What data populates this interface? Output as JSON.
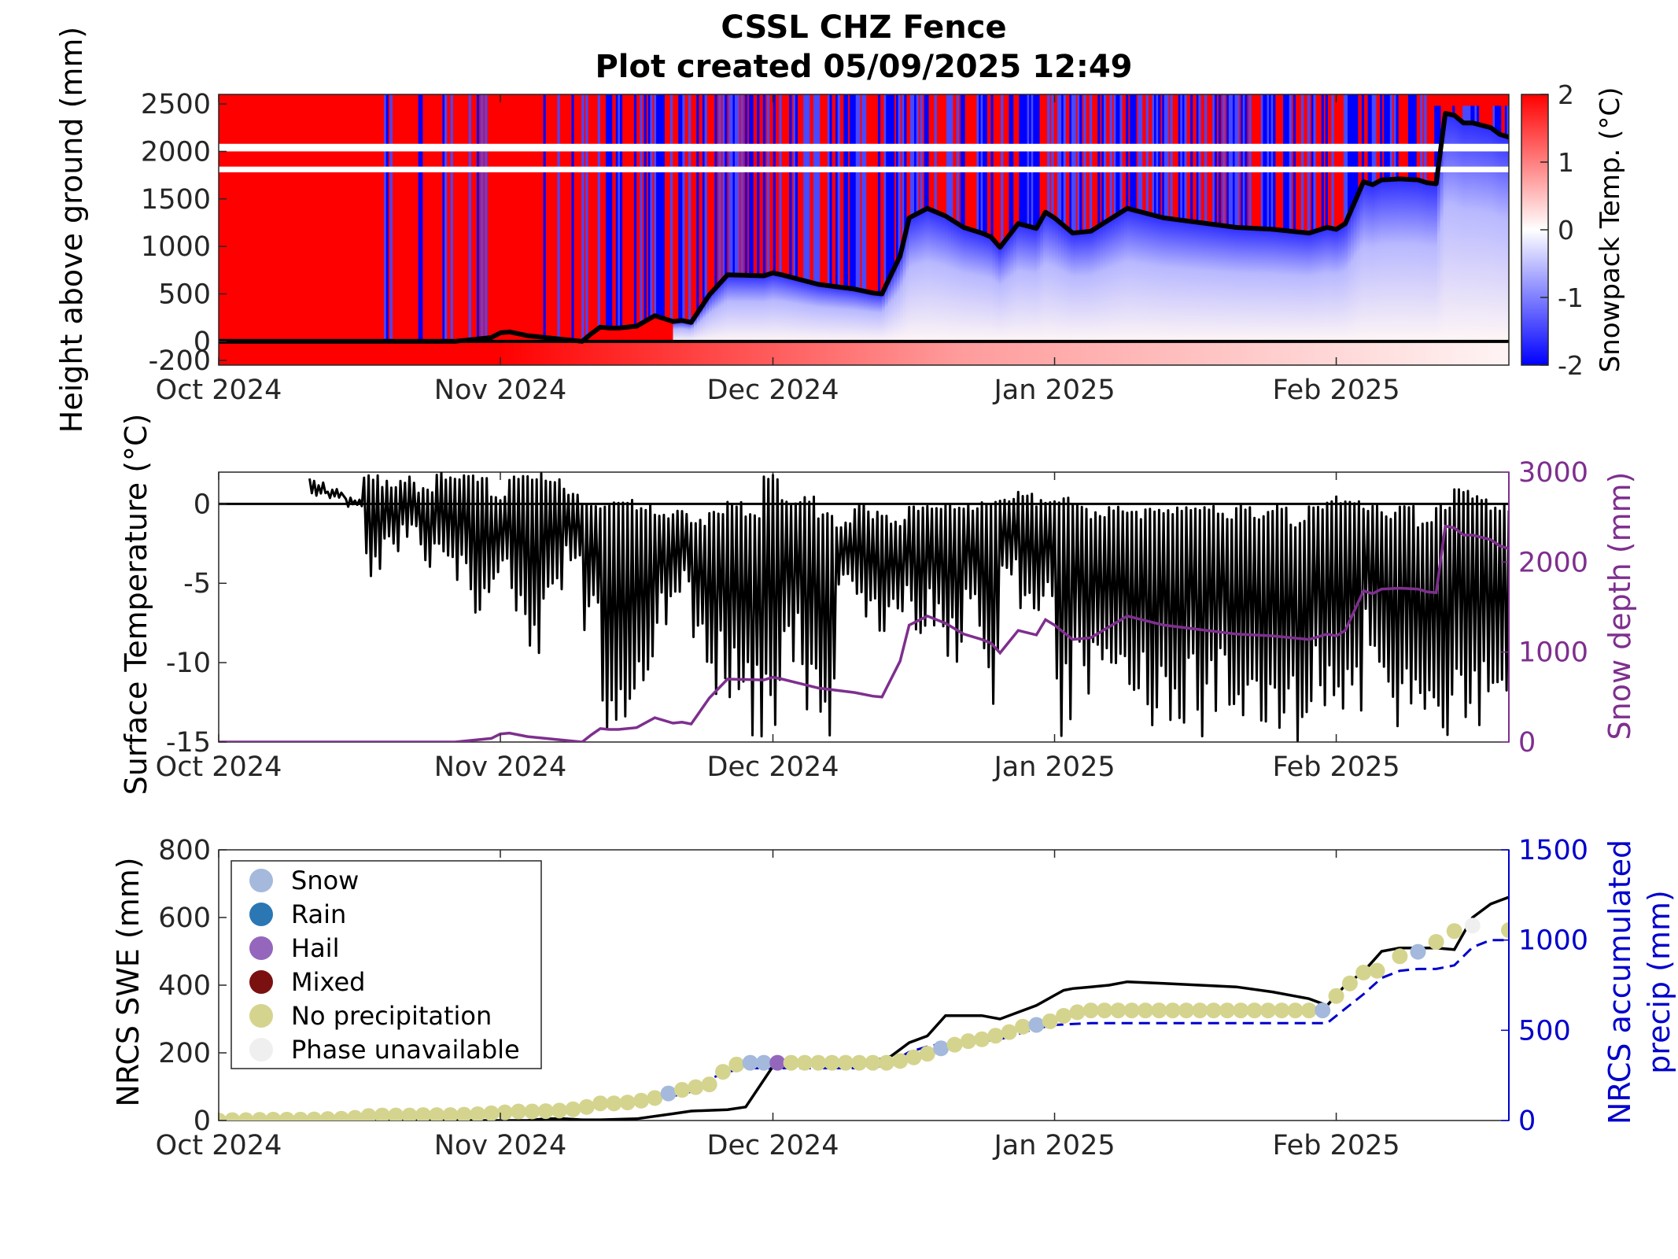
{
  "title": "CSSL CHZ Fence",
  "subtitle": "Plot created 05/09/2025 12:49",
  "colors": {
    "warm": "#ff0000",
    "cold": "#0000ff",
    "snow_depth": "#7e2f8e",
    "precip": "#0000cc",
    "swe": "#000000"
  },
  "chart_data": [
    {
      "type": "heatmap",
      "id": "snowpack",
      "ylabel": "Height above ground (mm)",
      "colorbar_label": "Snowpack Temp. (°C)",
      "colorbar_ticks": [
        2,
        1,
        0,
        -1,
        -2
      ],
      "colorbar_tick_labels": [
        "2",
        "1",
        "0",
        "-1",
        "-2"
      ],
      "zlim": [
        -2,
        2
      ],
      "ylim": [
        -250,
        2600
      ],
      "yticks": [
        2500,
        2000,
        1500,
        1000,
        500,
        0,
        -200
      ],
      "ytick_labels": [
        "2500",
        "2000",
        "1500",
        "1000",
        "500",
        "0",
        "-200"
      ],
      "xlim_days": [
        0,
        142
      ],
      "xticks": [
        0,
        31,
        61,
        92,
        123
      ],
      "xtick_labels": [
        "Oct 2024",
        "Nov 2024",
        "Dec 2024",
        "Jan 2025",
        "Feb 2025"
      ],
      "sensor_gaps_mm": [
        [
          2000,
          2080
        ],
        [
          1780,
          1840
        ]
      ],
      "snow_depth": {
        "x": [
          0,
          26,
          30,
          31,
          32,
          34,
          40,
          41,
          42,
          43,
          44,
          46,
          48,
          50,
          51,
          52,
          54,
          56,
          60,
          61,
          62,
          64,
          66,
          70,
          72,
          73,
          74,
          75,
          76,
          78,
          80,
          82,
          84,
          85,
          86,
          88,
          90,
          91,
          92,
          94,
          96,
          100,
          104,
          108,
          112,
          116,
          120,
          122,
          123,
          124,
          126,
          127,
          128,
          130,
          132,
          133,
          134,
          135,
          136,
          137,
          138,
          140,
          141,
          142
        ],
        "y": [
          0,
          0,
          40,
          90,
          100,
          60,
          0,
          80,
          150,
          140,
          140,
          160,
          270,
          210,
          220,
          200,
          490,
          700,
          690,
          720,
          700,
          650,
          600,
          550,
          510,
          500,
          700,
          900,
          1300,
          1400,
          1320,
          1200,
          1140,
          1100,
          990,
          1240,
          1190,
          1360,
          1300,
          1140,
          1160,
          1400,
          1300,
          1250,
          1200,
          1180,
          1140,
          1200,
          1180,
          1240,
          1680,
          1650,
          1700,
          1710,
          1700,
          1670,
          1660,
          2400,
          2380,
          2300,
          2300,
          2250,
          2180,
          2150
        ]
      },
      "snowcover_start_day": 50
    },
    {
      "type": "line",
      "id": "surface",
      "ylabel": "Surface Temperature (°C)",
      "y2label": "Snow depth (mm)",
      "ylim": [
        -15,
        2
      ],
      "yticks": [
        0,
        -5,
        -10,
        -15
      ],
      "ytick_labels": [
        "0",
        "-5",
        "-10",
        "-15"
      ],
      "y2lim": [
        0,
        3000
      ],
      "y2ticks": [
        3000,
        2000,
        1000,
        0
      ],
      "y2tick_labels": [
        "3000",
        "2000",
        "1000",
        "0"
      ],
      "xlim_days": [
        0,
        142
      ],
      "xticks": [
        0,
        31,
        61,
        92,
        123
      ],
      "xtick_labels": [
        "Oct 2024",
        "Nov 2024",
        "Dec 2024",
        "Jan 2025",
        "Feb 2025"
      ],
      "series": [
        {
          "series_key": "surface_temperature",
          "color": "#000000",
          "x_days": [
            10,
            12,
            14,
            16,
            18,
            20,
            22,
            24,
            26,
            28,
            30,
            32,
            34,
            36,
            38,
            40,
            42,
            44,
            46,
            48,
            50,
            52,
            54,
            56,
            58,
            60,
            62,
            64,
            66,
            68,
            70,
            72,
            74,
            76,
            78,
            80,
            82,
            84,
            86,
            88,
            90,
            92,
            94,
            96,
            98,
            100,
            102,
            104,
            106,
            108,
            110,
            112,
            114,
            116,
            118,
            120,
            122,
            124,
            126,
            128,
            130,
            132,
            134,
            136,
            138,
            140,
            142
          ],
          "daily_max": [
            1.6,
            1.0,
            0.5,
            1.8,
            1.5,
            1.8,
            1.2,
            2.0,
            2.0,
            1.8,
            0.5,
            2.0,
            2.0,
            1.8,
            1.0,
            0,
            0.2,
            0.3,
            0,
            -0.5,
            -0.3,
            -1.0,
            -0.2,
            0.2,
            -0.5,
            2.0,
            0.3,
            0.5,
            -0.5,
            -1.0,
            0,
            -0.5,
            -1.0,
            0,
            0,
            0,
            0,
            0.3,
            0.5,
            0.8,
            0.3,
            0.5,
            0,
            -0.5,
            0,
            -0.5,
            0,
            -0.2,
            0,
            0,
            -0.5,
            0,
            -0.5,
            0,
            -1.0,
            0,
            0.5,
            0.5,
            0,
            -0.5,
            0,
            -1.0,
            0,
            1.0,
            0.5,
            0,
            0
          ],
          "daily_min": [
            0.5,
            0.3,
            -0.2,
            -5.0,
            -3.0,
            -2.5,
            -4.0,
            -4.5,
            -6.0,
            -7.0,
            -5.5,
            -8.0,
            -10.0,
            -6.0,
            -4.0,
            -8.0,
            -15.0,
            -15.0,
            -12.0,
            -8.0,
            -6.0,
            -10.0,
            -12.0,
            -14.0,
            -15.0,
            -15.0,
            -10.0,
            -14.0,
            -15.0,
            -6.0,
            -8.0,
            -8.0,
            -7.0,
            -9.0,
            -8.0,
            -10.0,
            -8.0,
            -14.0,
            -5.0,
            -8.0,
            -7.0,
            -15.0,
            -12.0,
            -10.0,
            -13.0,
            -12.0,
            -14.0,
            -15.0,
            -14.0,
            -15.0,
            -13.0,
            -14.0,
            -15.0,
            -15.0,
            -15.0,
            -13.0,
            -14.0,
            -15.0,
            -10.0,
            -15.0,
            -15.0,
            -14.0,
            -15.0,
            -15.0,
            -15.0,
            -15.0,
            -11.0
          ]
        },
        {
          "series_key": "snow_depth",
          "color": "#7e2f8e",
          "axis": "right",
          "ref": "snowpack.snow_depth"
        }
      ]
    },
    {
      "type": "scatter",
      "id": "swe",
      "ylabel": "NRCS SWE (mm)",
      "y2label_lines": [
        "NRCS accumulated",
        "precip (mm)"
      ],
      "ylim": [
        0,
        800
      ],
      "yticks": [
        800,
        600,
        400,
        200,
        0
      ],
      "ytick_labels": [
        "800",
        "600",
        "400",
        "200",
        "0"
      ],
      "y2lim": [
        0,
        1500
      ],
      "y2ticks": [
        1500,
        1000,
        500,
        0
      ],
      "y2tick_labels": [
        "1500",
        "1000",
        "500",
        "0"
      ],
      "xlim_days": [
        0,
        142
      ],
      "xticks": [
        0,
        31,
        61,
        92,
        123
      ],
      "xtick_labels": [
        "Oct 2024",
        "Nov 2024",
        "Dec 2024",
        "Jan 2025",
        "Feb 2025"
      ],
      "legend": {
        "placement": "upper-left",
        "entries": [
          {
            "label": "Snow",
            "color": "#a4b9dc"
          },
          {
            "label": "Rain",
            "color": "#2b77b4"
          },
          {
            "label": "Hail",
            "color": "#9467bd"
          },
          {
            "label": "Mixed",
            "color": "#7b1010"
          },
          {
            "label": "No precipitation",
            "color": "#d4d48e"
          },
          {
            "label": "Phase unavailable",
            "color": "#efefef"
          }
        ]
      },
      "swe_line": {
        "x": [
          0,
          34,
          36,
          38,
          40,
          42,
          46,
          50,
          52,
          54,
          56,
          58,
          61,
          68,
          70,
          72,
          74,
          76,
          78,
          80,
          82,
          84,
          86,
          88,
          90,
          92,
          93,
          94,
          96,
          98,
          100,
          104,
          108,
          112,
          116,
          120,
          122,
          124,
          126,
          127,
          128,
          130,
          132,
          134,
          136,
          138,
          140,
          142
        ],
        "y": [
          0,
          0,
          5,
          5,
          2,
          2,
          5,
          20,
          28,
          30,
          32,
          40,
          160,
          170,
          175,
          175,
          190,
          230,
          250,
          310,
          310,
          310,
          300,
          320,
          340,
          370,
          385,
          390,
          395,
          400,
          410,
          405,
          400,
          395,
          380,
          360,
          340,
          400,
          440,
          470,
          500,
          510,
          510,
          510,
          505,
          600,
          640,
          660
        ]
      },
      "precip_line": {
        "x": [
          0,
          30,
          40,
          48,
          52,
          54,
          56,
          58,
          60,
          64,
          68,
          72,
          74,
          76,
          78,
          80,
          84,
          86,
          88,
          90,
          92,
          96,
          100,
          104,
          108,
          112,
          116,
          120,
          122,
          124,
          126,
          128,
          130,
          132,
          134,
          136,
          138,
          140,
          142
        ],
        "y": [
          0,
          40,
          70,
          110,
          160,
          230,
          270,
          290,
          290,
          290,
          290,
          290,
          320,
          380,
          410,
          430,
          440,
          450,
          480,
          510,
          530,
          540,
          540,
          540,
          540,
          540,
          540,
          540,
          540,
          620,
          700,
          790,
          830,
          840,
          840,
          860,
          960,
          1000,
          1000
        ]
      },
      "points_precip_axis": {
        "x": [
          0,
          1.5,
          3,
          4.5,
          6,
          7.5,
          9,
          10.5,
          12,
          13.5,
          15,
          16.5,
          18,
          19.5,
          21,
          22.5,
          24,
          25.5,
          27,
          28.5,
          30,
          31.5,
          33,
          34.5,
          36,
          37.5,
          39,
          40.5,
          42,
          43.5,
          45,
          46.5,
          48,
          49.5,
          51,
          52.5,
          54,
          55.5,
          57,
          58.5,
          60,
          61.5,
          63,
          64.5,
          66,
          67.5,
          69,
          70.5,
          72,
          73.5,
          75,
          76.5,
          78,
          79.5,
          81,
          82.5,
          84,
          85.5,
          87,
          88.5,
          90,
          91.5,
          93,
          94.5,
          96,
          97.5,
          99,
          100.5,
          102,
          103.5,
          105,
          106.5,
          108,
          109.5,
          111,
          112.5,
          114,
          115.5,
          117,
          118.5,
          120,
          121.5,
          123,
          124.5,
          126,
          127.5,
          130,
          132,
          134,
          136,
          138,
          142
        ],
        "y": [
          0,
          2,
          2,
          4,
          5,
          5,
          5,
          6,
          8,
          10,
          15,
          25,
          28,
          28,
          28,
          30,
          30,
          30,
          32,
          35,
          40,
          45,
          50,
          50,
          52,
          55,
          62,
          75,
          95,
          95,
          100,
          110,
          125,
          150,
          170,
          185,
          200,
          270,
          310,
          320,
          320,
          320,
          320,
          320,
          320,
          320,
          320,
          320,
          320,
          320,
          330,
          350,
          370,
          400,
          420,
          440,
          450,
          470,
          490,
          520,
          530,
          550,
          580,
          600,
          610,
          610,
          610,
          610,
          610,
          610,
          610,
          610,
          610,
          610,
          610,
          610,
          610,
          610,
          610,
          610,
          610,
          610,
          690,
          760,
          820,
          830,
          910,
          935,
          990,
          1050,
          1080,
          1055
        ],
        "phase": [
          "n",
          "n",
          "n",
          "n",
          "n",
          "n",
          "n",
          "n",
          "n",
          "n",
          "n",
          "n",
          "n",
          "n",
          "n",
          "n",
          "n",
          "n",
          "n",
          "n",
          "n",
          "n",
          "n",
          "n",
          "n",
          "n",
          "n",
          "n",
          "n",
          "n",
          "n",
          "n",
          "n",
          "s",
          "n",
          "n",
          "n",
          "n",
          "n",
          "s",
          "s",
          "h",
          "n",
          "n",
          "n",
          "n",
          "n",
          "n",
          "n",
          "n",
          "n",
          "n",
          "n",
          "s",
          "n",
          "n",
          "n",
          "n",
          "n",
          "n",
          "s",
          "n",
          "n",
          "n",
          "n",
          "n",
          "n",
          "n",
          "n",
          "n",
          "n",
          "n",
          "n",
          "n",
          "n",
          "n",
          "n",
          "n",
          "n",
          "n",
          "n",
          "s",
          "n",
          "n",
          "n",
          "n",
          "n",
          "s",
          "n",
          "n",
          "u",
          "n"
        ]
      }
    }
  ]
}
